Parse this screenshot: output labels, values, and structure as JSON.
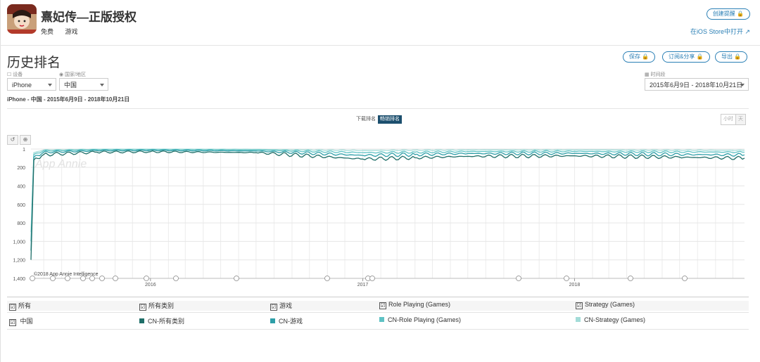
{
  "app": {
    "title": "熹妃传—正版授权",
    "price": "免费",
    "category": "游戏",
    "create_alert": "创建提醒 🔒",
    "ios_link": "在iOS Store中打开 ↗"
  },
  "section": {
    "title": "历史排名",
    "save": "保存 🔒",
    "subscribe": "订阅&分享 🔒",
    "export": "导出 🔒"
  },
  "filters": {
    "device_label": "☐ 设备",
    "device_value": "iPhone",
    "country_label": "◉ 国家/地区",
    "country_value": "中国",
    "period_label": "▦ 时间段",
    "period_value": "2015年6月9日 - 2018年10月21日",
    "subtitle": "iPhone - 中国 - 2015年6月9日 - 2018年10月21日"
  },
  "tabs": {
    "download": "下载排名",
    "grossing": "畅销排名"
  },
  "granularity": {
    "hour": "小时",
    "day": "天"
  },
  "tools": {
    "reset": "↺",
    "zoom": "⊕"
  },
  "chart_data": {
    "type": "line",
    "y_reversed": true,
    "ylim": [
      1,
      1400
    ],
    "y_ticks": [
      "1",
      "200",
      "400",
      "600",
      "800",
      "1,000",
      "1,200",
      "1,400"
    ],
    "y_tick_values": [
      1,
      200,
      400,
      600,
      800,
      1000,
      1200,
      1400
    ],
    "x_range": [
      "2015-06-09",
      "2018-10-21"
    ],
    "x_ticks": [
      "2016",
      "2017",
      "2018"
    ],
    "x_tick_dates": [
      "2016-01-01",
      "2017-01-01",
      "2018-01-01"
    ],
    "watermark": "App Annie",
    "credit": "©2018 App Annie Intelligence",
    "grid": true,
    "series": [
      {
        "name": "CN-所有类别",
        "color": "#1f6e68",
        "x": [
          "2015-06-09",
          "2015-06-14",
          "2015-07-01",
          "2015-10-01",
          "2016-01-01",
          "2016-07-01",
          "2017-01-01",
          "2017-04-01",
          "2017-07-01",
          "2018-01-01",
          "2018-07-01",
          "2018-10-21"
        ],
        "y": [
          1200,
          120,
          60,
          35,
          30,
          40,
          110,
          95,
          80,
          75,
          90,
          100
        ]
      },
      {
        "name": "CN-游戏",
        "color": "#2e9fa8",
        "x": [
          "2015-06-09",
          "2015-06-14",
          "2015-07-01",
          "2015-10-01",
          "2016-01-01",
          "2016-07-01",
          "2017-01-01",
          "2017-04-01",
          "2017-07-01",
          "2018-01-01",
          "2018-07-01",
          "2018-10-21"
        ],
        "y": [
          1100,
          90,
          35,
          18,
          15,
          22,
          70,
          60,
          50,
          48,
          60,
          65
        ]
      },
      {
        "name": "CN-Role Playing (Games)",
        "color": "#5fc2c4",
        "x": [
          "2015-06-09",
          "2015-06-14",
          "2015-07-01",
          "2015-10-01",
          "2016-01-01",
          "2016-07-01",
          "2017-01-01",
          "2017-04-01",
          "2017-07-01",
          "2018-01-01",
          "2018-07-01",
          "2018-10-21"
        ],
        "y": [
          1000,
          60,
          20,
          8,
          6,
          10,
          40,
          35,
          28,
          26,
          32,
          35
        ]
      },
      {
        "name": "CN-Strategy (Games)",
        "color": "#a3dcd8",
        "x": [
          "2015-06-09",
          "2015-06-14",
          "2015-07-01",
          "2015-10-01",
          "2016-01-01",
          "2016-07-01",
          "2017-01-01",
          "2017-04-01",
          "2017-07-01",
          "2018-01-01",
          "2018-07-01",
          "2018-10-21"
        ],
        "y": [
          900,
          40,
          10,
          3,
          2,
          4,
          15,
          12,
          10,
          9,
          12,
          14
        ]
      }
    ]
  },
  "legend": {
    "all": "所有",
    "all_categories": "所有类别",
    "games": "游戏",
    "role_playing": "Role Playing (Games)",
    "strategy": "Strategy (Games)",
    "country": "中国",
    "cn_all": "CN-所有类别",
    "cn_games": "CN-游戏",
    "cn_rpg": "CN-Role Playing (Games)",
    "cn_strategy": "CN-Strategy (Games)",
    "check": "☑"
  },
  "colors": {
    "accent": "#2a7fb5",
    "active_tab": "#1c4f6e"
  }
}
